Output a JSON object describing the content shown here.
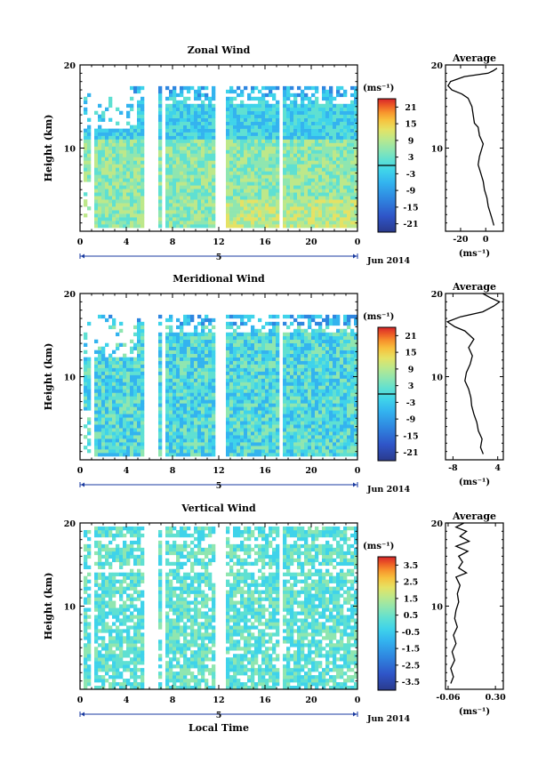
{
  "colors": {
    "colormap": [
      "#2a3a8c",
      "#2f55c8",
      "#2f86e0",
      "#33b3ef",
      "#3fd3ea",
      "#5fe0d2",
      "#8fe6b0",
      "#bde88a",
      "#e5e264",
      "#f7c23e",
      "#f7922c",
      "#ec5a26",
      "#d8262a"
    ]
  },
  "common": {
    "xticks": [
      "0",
      "4",
      "8",
      "12",
      "16",
      "20",
      "0"
    ],
    "xticks_values": [
      0,
      4,
      8,
      12,
      16,
      20,
      24
    ],
    "date_label": "5",
    "month_label": "Jun 2014",
    "ylabel": "Height (km)",
    "yticks": [
      "10",
      "20"
    ],
    "ytick_values": [
      10,
      20
    ],
    "xlabel_bottom": "Local Time",
    "unit": "(ms⁻¹)"
  },
  "chart_data": [
    {
      "type": "heatmap",
      "title": "Zonal Wind",
      "xlim": [
        0,
        24
      ],
      "ylim": [
        0,
        20
      ],
      "colorbar": {
        "ticks": [
          "21",
          "15",
          "9",
          "3",
          "-3",
          "-9",
          "-15",
          "-21"
        ],
        "range": [
          -24,
          24
        ],
        "zero_line": 0
      },
      "data_gaps_hours": [
        [
          0.1,
          0.35
        ],
        [
          1.0,
          1.3
        ],
        [
          5.5,
          6.8
        ],
        [
          7.1,
          7.5
        ],
        [
          11.8,
          12.6
        ],
        [
          17.3,
          17.6
        ]
      ],
      "average": {
        "title": "Average",
        "xticks": [
          "-20",
          "0"
        ],
        "xtick_values": [
          -20,
          0
        ],
        "xlim": [
          -32,
          14
        ],
        "unit": "(ms⁻¹)",
        "profile": [
          [
            6.5,
            0.7
          ],
          [
            5,
            1.5
          ],
          [
            4,
            2
          ],
          [
            2,
            3
          ],
          [
            1,
            4
          ],
          [
            -1,
            5
          ],
          [
            -2,
            6
          ],
          [
            -4,
            7
          ],
          [
            -6,
            8
          ],
          [
            -5,
            9
          ],
          [
            -3,
            10
          ],
          [
            -2,
            10.5
          ],
          [
            -5,
            11.5
          ],
          [
            -6,
            12.5
          ],
          [
            -9,
            13
          ],
          [
            -10,
            14
          ],
          [
            -11,
            15
          ],
          [
            -14,
            16
          ],
          [
            -19,
            16.5
          ],
          [
            -27,
            17
          ],
          [
            -30,
            17.5
          ],
          [
            -28,
            18
          ],
          [
            -17,
            18.6
          ],
          [
            2,
            19
          ],
          [
            6,
            19.3
          ],
          [
            9,
            19.6
          ]
        ]
      }
    },
    {
      "type": "heatmap",
      "title": "Meridional Wind",
      "xlim": [
        0,
        24
      ],
      "ylim": [
        0,
        20
      ],
      "colorbar": {
        "ticks": [
          "21",
          "15",
          "9",
          "3",
          "-3",
          "-9",
          "-15",
          "-21"
        ],
        "range": [
          -24,
          24
        ],
        "zero_line": 0
      },
      "data_gaps_hours": [
        [
          0.1,
          0.35
        ],
        [
          1.0,
          1.3
        ],
        [
          5.5,
          6.8
        ],
        [
          7.1,
          7.5
        ],
        [
          11.8,
          12.6
        ],
        [
          17.3,
          17.6
        ]
      ],
      "average": {
        "title": "Average",
        "xticks": [
          "-8",
          "4"
        ],
        "xtick_values": [
          -8,
          4
        ],
        "xlim": [
          -10,
          5.5
        ],
        "unit": "(ms⁻¹)",
        "profile": [
          [
            0.1,
            0.7
          ],
          [
            -0.6,
            1.5
          ],
          [
            -0.2,
            2.5
          ],
          [
            -1.2,
            3.5
          ],
          [
            -1.6,
            4.5
          ],
          [
            -2.4,
            5.5
          ],
          [
            -3,
            6.5
          ],
          [
            -3.2,
            7.5
          ],
          [
            -3.8,
            8.5
          ],
          [
            -4.8,
            9.5
          ],
          [
            -4.4,
            10.5
          ],
          [
            -3.4,
            11.5
          ],
          [
            -2.8,
            12.5
          ],
          [
            -3.8,
            13.5
          ],
          [
            -2.4,
            14.5
          ],
          [
            -4.8,
            15.5
          ],
          [
            -7.5,
            16
          ],
          [
            -9.5,
            16.6
          ],
          [
            -6,
            17.2
          ],
          [
            0,
            17.8
          ],
          [
            3,
            18.5
          ],
          [
            4.5,
            19
          ],
          [
            2,
            19.5
          ],
          [
            0,
            20
          ]
        ]
      }
    },
    {
      "type": "heatmap",
      "title": "Vertical Wind",
      "xlim": [
        0,
        24
      ],
      "ylim": [
        0,
        20
      ],
      "xlabel": "Local Time",
      "colorbar": {
        "ticks": [
          "3.5",
          "2.5",
          "1.5",
          "0.5",
          "-0.5",
          "-1.5",
          "-2.5",
          "-3.5"
        ],
        "range": [
          -4,
          4
        ]
      },
      "data_gaps_hours": [
        [
          0.1,
          0.35
        ],
        [
          1.0,
          1.3
        ],
        [
          5.5,
          6.8
        ],
        [
          7.1,
          7.5
        ],
        [
          11.8,
          12.6
        ],
        [
          17.3,
          17.6
        ]
      ],
      "average": {
        "title": "Average",
        "xticks": [
          "-0.06",
          "0.30"
        ],
        "xtick_values": [
          -0.06,
          0.3
        ],
        "xlim": [
          -0.08,
          0.36
        ],
        "unit": "(ms⁻¹)",
        "profile": [
          [
            -0.04,
            0.7
          ],
          [
            -0.02,
            1.5
          ],
          [
            -0.04,
            2.5
          ],
          [
            -0.01,
            3.5
          ],
          [
            -0.03,
            4.5
          ],
          [
            0.0,
            5.5
          ],
          [
            -0.02,
            6.5
          ],
          [
            0.01,
            7.5
          ],
          [
            -0.01,
            8.5
          ],
          [
            0.0,
            9.5
          ],
          [
            0.02,
            10.5
          ],
          [
            0.01,
            11.5
          ],
          [
            0.03,
            12.5
          ],
          [
            0.0,
            13.5
          ],
          [
            0.08,
            14
          ],
          [
            0.02,
            14.6
          ],
          [
            0.05,
            15.3
          ],
          [
            0.02,
            16
          ],
          [
            0.09,
            16.6
          ],
          [
            0.0,
            17.2
          ],
          [
            0.1,
            17.8
          ],
          [
            0.03,
            18.4
          ],
          [
            0.08,
            19
          ],
          [
            0.0,
            19.5
          ],
          [
            0.06,
            20
          ]
        ]
      }
    }
  ]
}
